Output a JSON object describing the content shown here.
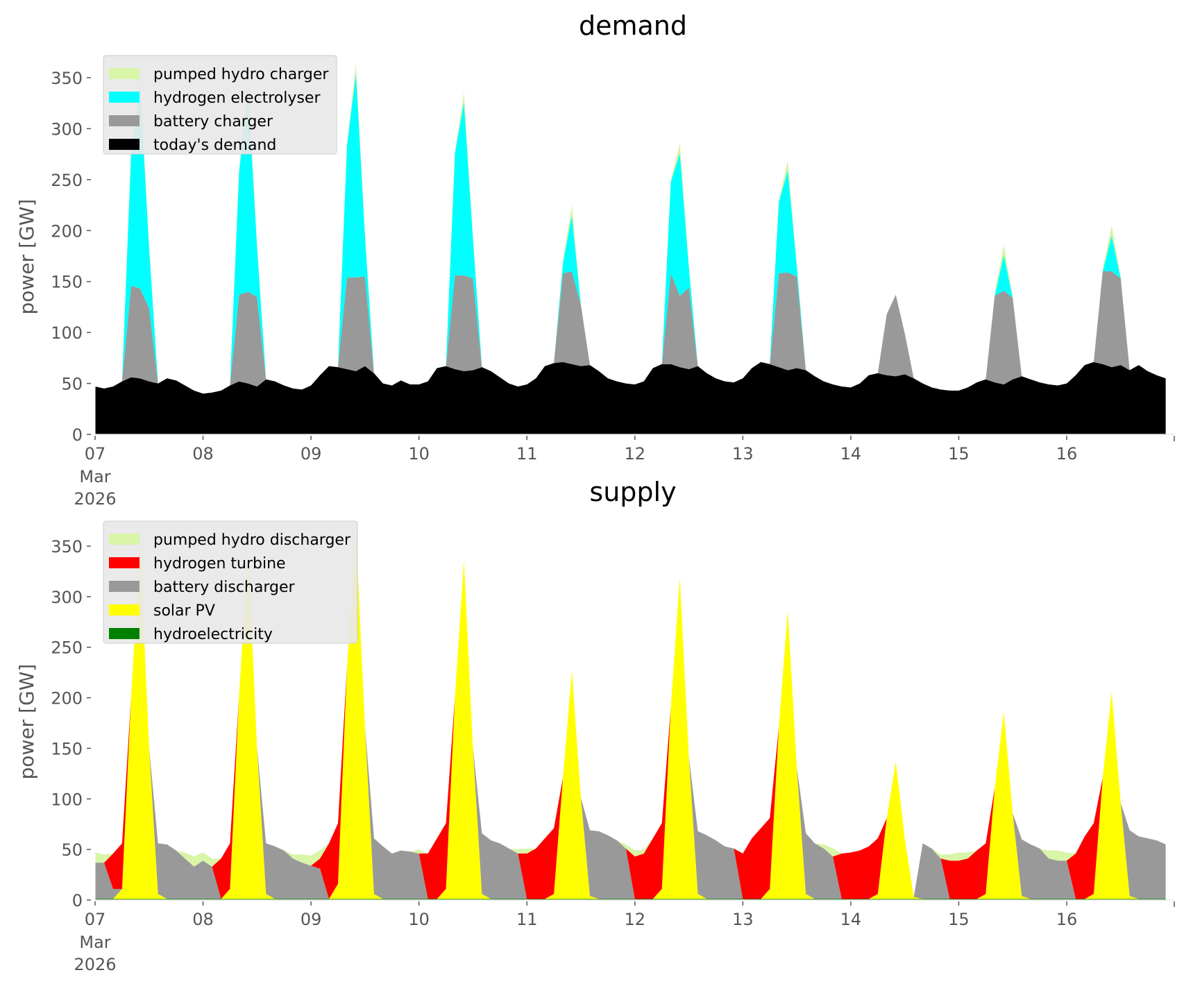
{
  "chart_data": [
    {
      "type": "area",
      "stacked": true,
      "title": "demand",
      "xlabel": "",
      "ylabel": "power [GW]",
      "ylim": [
        0,
        380
      ],
      "yticks": [
        "0",
        "50",
        "100",
        "150",
        "200",
        "250",
        "300",
        "350"
      ],
      "ytick_values": [
        0,
        50,
        100,
        150,
        200,
        250,
        300,
        350
      ],
      "xticks": [
        "07",
        "08",
        "09",
        "10",
        "11",
        "12",
        "13",
        "14",
        "15",
        "16"
      ],
      "xtick_sublabels": [
        "Mar",
        "2026"
      ],
      "x_start": "2026-03-07 00:00",
      "x_step_hours": 2,
      "x_span_hours": 238,
      "legend_position": "top-left",
      "grid": false,
      "series": [
        {
          "name": "today's demand",
          "color": "#000000",
          "values": [
            47,
            45,
            47,
            52,
            56,
            55,
            52,
            50,
            55,
            53,
            48,
            43,
            40,
            41,
            43,
            48,
            52,
            50,
            47,
            54,
            52,
            48,
            45,
            44,
            48,
            58,
            67,
            66,
            64,
            62,
            67,
            60,
            50,
            48,
            53,
            49,
            49,
            52,
            65,
            67,
            64,
            62,
            63,
            66,
            62,
            56,
            50,
            47,
            49,
            55,
            67,
            70,
            71,
            69,
            67,
            68,
            62,
            55,
            52,
            50,
            49,
            52,
            65,
            69,
            69,
            66,
            64,
            67,
            60,
            55,
            52,
            51,
            55,
            65,
            71,
            69,
            66,
            63,
            65,
            63,
            57,
            52,
            49,
            47,
            46,
            50,
            58,
            60,
            58,
            57,
            59,
            55,
            50,
            46,
            44,
            43,
            43,
            46,
            51,
            54,
            51,
            49,
            54,
            57,
            54,
            51,
            49,
            48,
            50,
            58,
            68,
            71,
            69,
            66,
            68,
            63,
            68,
            62,
            58,
            55
          ]
        },
        {
          "name": "battery charger",
          "color": "#999999",
          "values": [
            0,
            0,
            0,
            0,
            90,
            88,
            72,
            0,
            0,
            0,
            0,
            0,
            0,
            0,
            0,
            0,
            85,
            90,
            88,
            0,
            0,
            0,
            0,
            0,
            0,
            0,
            0,
            0,
            90,
            92,
            88,
            0,
            0,
            0,
            0,
            0,
            0,
            0,
            0,
            0,
            92,
            94,
            90,
            0,
            0,
            0,
            0,
            0,
            0,
            0,
            0,
            0,
            87,
            91,
            60,
            0,
            0,
            0,
            0,
            0,
            0,
            0,
            0,
            0,
            89,
            70,
            80,
            0,
            0,
            0,
            0,
            0,
            0,
            0,
            0,
            0,
            92,
            96,
            90,
            0,
            0,
            0,
            0,
            0,
            0,
            0,
            0,
            0,
            60,
            80,
            40,
            0,
            0,
            0,
            0,
            0,
            0,
            0,
            0,
            0,
            85,
            92,
            80,
            0,
            0,
            0,
            0,
            0,
            0,
            0,
            0,
            0,
            91,
            94,
            85,
            0,
            0,
            0,
            0,
            0
          ]
        },
        {
          "name": "hydrogen electrolyser",
          "color": "#00ffff",
          "values": [
            0,
            0,
            0,
            0,
            130,
            200,
            60,
            0,
            0,
            0,
            0,
            0,
            0,
            0,
            0,
            0,
            120,
            200,
            50,
            0,
            0,
            0,
            0,
            0,
            0,
            0,
            0,
            0,
            130,
            200,
            40,
            0,
            0,
            0,
            0,
            0,
            0,
            0,
            0,
            0,
            120,
            170,
            40,
            0,
            0,
            0,
            0,
            0,
            0,
            0,
            0,
            0,
            10,
            55,
            0,
            0,
            0,
            0,
            0,
            0,
            0,
            0,
            0,
            0,
            90,
            140,
            20,
            0,
            0,
            0,
            0,
            0,
            0,
            0,
            0,
            0,
            70,
            100,
            10,
            0,
            0,
            0,
            0,
            0,
            0,
            0,
            0,
            0,
            0,
            0,
            0,
            0,
            0,
            0,
            0,
            0,
            0,
            0,
            0,
            0,
            0,
            35,
            0,
            0,
            0,
            0,
            0,
            0,
            0,
            0,
            0,
            0,
            0,
            35,
            0,
            0,
            0,
            0,
            0,
            0
          ]
        },
        {
          "name": "pumped hydro charger",
          "color": "#d8f5a8",
          "values": [
            0,
            0,
            0,
            0,
            2,
            8,
            2,
            0,
            0,
            0,
            0,
            0,
            0,
            0,
            0,
            0,
            2,
            8,
            2,
            0,
            0,
            0,
            0,
            0,
            0,
            0,
            0,
            0,
            2,
            10,
            2,
            0,
            0,
            0,
            0,
            0,
            0,
            0,
            0,
            0,
            2,
            10,
            2,
            0,
            0,
            0,
            0,
            0,
            0,
            0,
            0,
            0,
            3,
            10,
            2,
            0,
            0,
            0,
            0,
            0,
            0,
            0,
            0,
            0,
            2,
            10,
            2,
            0,
            0,
            0,
            0,
            0,
            0,
            0,
            0,
            0,
            2,
            10,
            2,
            0,
            0,
            0,
            0,
            0,
            0,
            0,
            0,
            0,
            0,
            0,
            0,
            0,
            0,
            0,
            0,
            0,
            0,
            0,
            0,
            0,
            3,
            10,
            2,
            0,
            0,
            0,
            0,
            0,
            0,
            0,
            0,
            0,
            3,
            10,
            2,
            0,
            0,
            0,
            0,
            0
          ]
        }
      ],
      "legend": [
        "pumped hydro charger",
        "hydrogen electrolyser",
        "battery charger",
        "today's demand"
      ]
    },
    {
      "type": "area",
      "stacked": true,
      "title": "supply",
      "xlabel": "",
      "ylabel": "power [GW]",
      "ylim": [
        0,
        380
      ],
      "yticks": [
        "0",
        "50",
        "100",
        "150",
        "200",
        "250",
        "300",
        "350"
      ],
      "ytick_values": [
        0,
        50,
        100,
        150,
        200,
        250,
        300,
        350
      ],
      "xticks": [
        "07",
        "08",
        "09",
        "10",
        "11",
        "12",
        "13",
        "14",
        "15",
        "16"
      ],
      "xtick_sublabels": [
        "Mar",
        "2026"
      ],
      "x_start": "2026-03-07 00:00",
      "x_step_hours": 2,
      "x_span_hours": 238,
      "legend_position": "top-left",
      "grid": false,
      "series": [
        {
          "name": "hydroelectricity",
          "color": "#008000",
          "values": [
            1,
            1,
            1,
            1,
            1,
            1,
            1,
            1,
            1,
            1,
            1,
            1,
            1,
            1,
            1,
            1,
            1,
            1,
            1,
            1,
            1,
            1,
            1,
            1,
            1,
            1,
            1,
            1,
            1,
            1,
            1,
            1,
            1,
            1,
            1,
            1,
            1,
            1,
            1,
            1,
            1,
            1,
            1,
            1,
            1,
            1,
            1,
            1,
            1,
            1,
            1,
            1,
            1,
            1,
            1,
            1,
            1,
            1,
            1,
            1,
            1,
            1,
            1,
            1,
            1,
            1,
            1,
            1,
            1,
            1,
            1,
            1,
            1,
            1,
            1,
            1,
            1,
            1,
            1,
            1,
            1,
            1,
            1,
            1,
            1,
            1,
            1,
            1,
            1,
            1,
            1,
            1,
            1,
            1,
            1,
            1,
            1,
            1,
            1,
            1,
            1,
            1,
            1,
            1,
            1,
            1,
            1,
            1,
            1,
            1,
            1,
            1,
            1,
            1,
            1,
            1,
            1,
            1,
            1,
            1
          ]
        },
        {
          "name": "solar PV",
          "color": "#ffff00",
          "values": [
            0,
            0,
            0,
            10,
            200,
            353,
            150,
            5,
            0,
            0,
            0,
            0,
            0,
            0,
            0,
            10,
            200,
            348,
            150,
            5,
            0,
            0,
            0,
            0,
            0,
            0,
            0,
            15,
            230,
            362,
            170,
            5,
            0,
            0,
            0,
            0,
            0,
            0,
            0,
            10,
            200,
            335,
            150,
            5,
            0,
            0,
            0,
            0,
            0,
            0,
            0,
            5,
            120,
            226,
            100,
            3,
            0,
            0,
            0,
            0,
            0,
            0,
            0,
            10,
            190,
            318,
            140,
            5,
            0,
            0,
            0,
            0,
            0,
            0,
            0,
            10,
            170,
            286,
            130,
            5,
            0,
            0,
            0,
            0,
            0,
            0,
            0,
            5,
            80,
            136,
            60,
            2,
            0,
            0,
            0,
            0,
            0,
            0,
            0,
            5,
            110,
            185,
            85,
            3,
            0,
            0,
            0,
            0,
            0,
            0,
            0,
            5,
            120,
            205,
            95,
            3,
            0,
            0,
            0,
            0
          ]
        },
        {
          "name": "battery discharger",
          "color": "#999999",
          "values": [
            36,
            36,
            10,
            0,
            0,
            0,
            0,
            50,
            54,
            48,
            40,
            32,
            38,
            32,
            0,
            0,
            0,
            0,
            0,
            50,
            52,
            48,
            40,
            36,
            33,
            30,
            0,
            0,
            0,
            0,
            0,
            55,
            52,
            45,
            48,
            47,
            45,
            0,
            0,
            0,
            0,
            0,
            0,
            60,
            58,
            55,
            50,
            45,
            0,
            0,
            0,
            0,
            0,
            0,
            0,
            65,
            67,
            63,
            58,
            50,
            0,
            0,
            0,
            0,
            0,
            0,
            0,
            62,
            63,
            58,
            52,
            50,
            0,
            0,
            0,
            0,
            0,
            0,
            0,
            60,
            55,
            50,
            42,
            0,
            0,
            0,
            0,
            0,
            0,
            0,
            0,
            0,
            55,
            50,
            40,
            0,
            0,
            0,
            0,
            0,
            0,
            0,
            0,
            56,
            54,
            50,
            40,
            38,
            38,
            0,
            0,
            0,
            0,
            0,
            0,
            65,
            62,
            60,
            58,
            54
          ]
        },
        {
          "name": "hydrogen turbine",
          "color": "#ff0000",
          "values": [
            0,
            0,
            35,
            45,
            0,
            0,
            0,
            0,
            0,
            0,
            0,
            0,
            0,
            0,
            40,
            45,
            0,
            0,
            0,
            0,
            0,
            0,
            0,
            0,
            0,
            10,
            55,
            60,
            0,
            0,
            0,
            0,
            0,
            0,
            0,
            0,
            0,
            45,
            60,
            65,
            0,
            0,
            0,
            0,
            0,
            0,
            0,
            0,
            45,
            50,
            60,
            65,
            0,
            0,
            0,
            0,
            0,
            0,
            0,
            0,
            42,
            45,
            60,
            65,
            0,
            0,
            0,
            0,
            0,
            0,
            0,
            0,
            45,
            60,
            70,
            70,
            0,
            0,
            0,
            0,
            0,
            0,
            0,
            45,
            46,
            48,
            52,
            55,
            0,
            0,
            0,
            0,
            0,
            0,
            0,
            38,
            38,
            40,
            48,
            50,
            0,
            0,
            0,
            0,
            0,
            0,
            0,
            0,
            0,
            45,
            62,
            70,
            0,
            0,
            0,
            0,
            0,
            0,
            0,
            0
          ]
        },
        {
          "name": "pumped hydro discharger",
          "color": "#d8f5a8",
          "values": [
            10,
            8,
            0,
            0,
            0,
            0,
            0,
            0,
            0,
            0,
            6,
            10,
            8,
            8,
            0,
            0,
            0,
            0,
            0,
            0,
            0,
            0,
            4,
            8,
            10,
            8,
            0,
            0,
            0,
            0,
            0,
            0,
            0,
            0,
            0,
            0,
            4,
            0,
            0,
            0,
            0,
            0,
            0,
            0,
            0,
            0,
            0,
            4,
            5,
            0,
            0,
            0,
            0,
            0,
            0,
            0,
            0,
            0,
            0,
            4,
            6,
            4,
            0,
            0,
            0,
            0,
            0,
            0,
            0,
            0,
            0,
            0,
            0,
            0,
            0,
            0,
            0,
            0,
            0,
            0,
            0,
            4,
            8,
            0,
            0,
            0,
            0,
            0,
            0,
            0,
            0,
            0,
            0,
            0,
            4,
            6,
            8,
            6,
            0,
            0,
            0,
            0,
            0,
            0,
            0,
            0,
            8,
            10,
            8,
            0,
            0,
            0,
            0,
            0,
            0,
            0,
            0,
            0,
            0,
            0
          ]
        }
      ],
      "legend": [
        "pumped hydro discharger",
        "hydrogen turbine",
        "battery discharger",
        "solar PV",
        "hydroelectricity"
      ]
    }
  ]
}
